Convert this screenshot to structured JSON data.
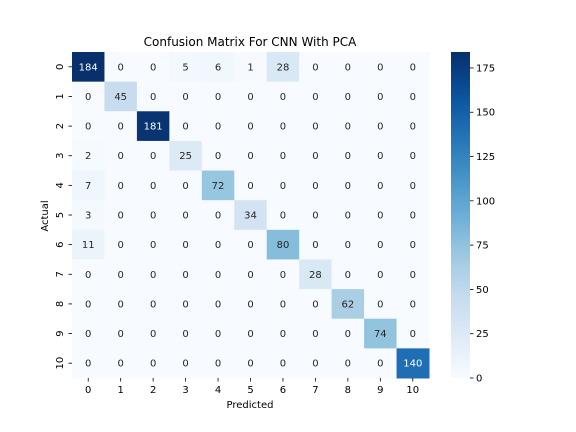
{
  "chart_data": {
    "type": "heatmap",
    "title": "Confusion Matrix For CNN With PCA",
    "xlabel": "Predicted",
    "ylabel": "Actual",
    "x_categories": [
      "0",
      "1",
      "2",
      "3",
      "4",
      "5",
      "6",
      "7",
      "8",
      "9",
      "10"
    ],
    "y_categories": [
      "0",
      "1",
      "2",
      "3",
      "4",
      "5",
      "6",
      "7",
      "8",
      "9",
      "10"
    ],
    "matrix": [
      [
        184,
        0,
        0,
        5,
        6,
        1,
        28,
        0,
        0,
        0,
        0
      ],
      [
        0,
        45,
        0,
        0,
        0,
        0,
        0,
        0,
        0,
        0,
        0
      ],
      [
        0,
        0,
        181,
        0,
        0,
        0,
        0,
        0,
        0,
        0,
        0
      ],
      [
        2,
        0,
        0,
        25,
        0,
        0,
        0,
        0,
        0,
        0,
        0
      ],
      [
        7,
        0,
        0,
        0,
        72,
        0,
        0,
        0,
        0,
        0,
        0
      ],
      [
        3,
        0,
        0,
        0,
        0,
        34,
        0,
        0,
        0,
        0,
        0
      ],
      [
        11,
        0,
        0,
        0,
        0,
        0,
        80,
        0,
        0,
        0,
        0
      ],
      [
        0,
        0,
        0,
        0,
        0,
        0,
        0,
        28,
        0,
        0,
        0
      ],
      [
        0,
        0,
        0,
        0,
        0,
        0,
        0,
        0,
        62,
        0,
        0
      ],
      [
        0,
        0,
        0,
        0,
        0,
        0,
        0,
        0,
        0,
        74,
        0
      ],
      [
        0,
        0,
        0,
        0,
        0,
        0,
        0,
        0,
        0,
        0,
        140
      ]
    ],
    "colorbar": {
      "ticks": [
        "0",
        "25",
        "50",
        "75",
        "100",
        "125",
        "150",
        "175"
      ],
      "range": [
        0,
        184
      ],
      "colormap": "Blues"
    }
  }
}
